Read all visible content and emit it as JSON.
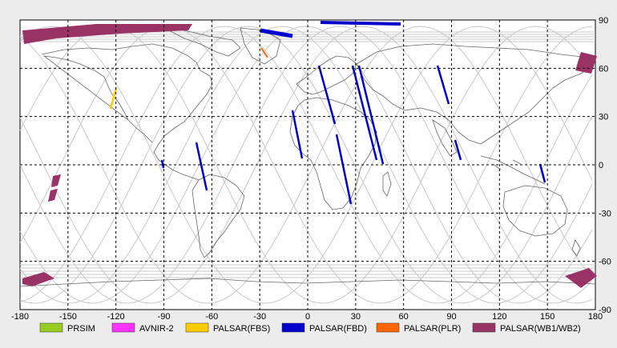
{
  "map": {
    "x_ticks": [
      "-180",
      "-150",
      "-120",
      "-90",
      "-60",
      "-30",
      "0",
      "30",
      "60",
      "90",
      "120",
      "150",
      "180"
    ],
    "y_ticks": [
      "90",
      "60",
      "30",
      "0",
      "-30",
      "-60",
      "-90"
    ],
    "grid": "dashed",
    "legend_placement": "bottom"
  },
  "legend": [
    {
      "label": "PRSIM",
      "color": "#99cc22"
    },
    {
      "label": "AVNIR-2",
      "color": "#ff33ff"
    },
    {
      "label": "PALSAR(FBS)",
      "color": "#ffcc00"
    },
    {
      "label": "PALSAR(FBD)",
      "color": "#0000cc"
    },
    {
      "label": "PALSAR(PLR)",
      "color": "#ff6600"
    },
    {
      "label": "PALSAR(WB1/WB2)",
      "color": "#993366"
    }
  ]
}
